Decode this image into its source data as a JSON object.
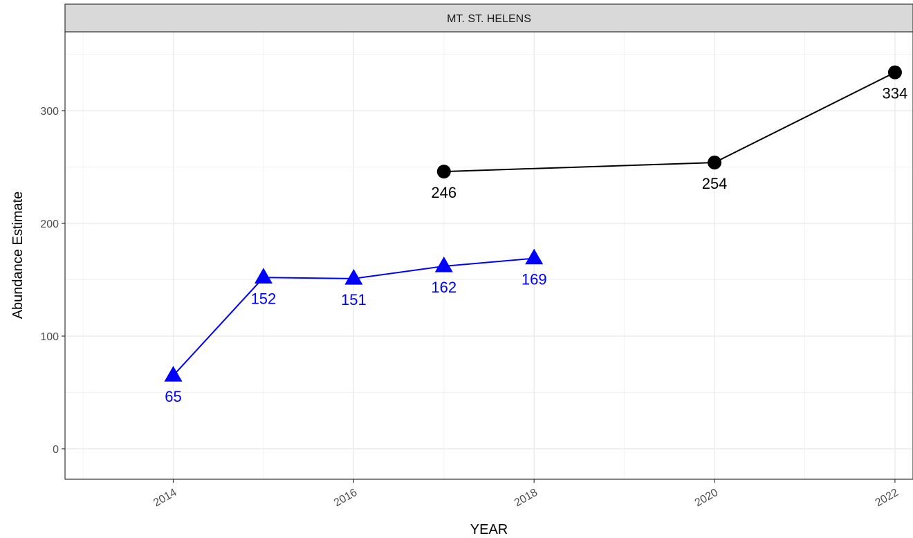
{
  "chart_data": {
    "type": "line",
    "title": "",
    "facet_label": "MT. ST. HELENS",
    "xlabel": "YEAR",
    "ylabel": "Abundance Estimate",
    "xlim": [
      2012.8,
      2022.2
    ],
    "ylim": [
      -27,
      370
    ],
    "x_ticks": [
      2014,
      2016,
      2018,
      2020,
      2022
    ],
    "x_tick_labels": [
      "2014",
      "2016",
      "2018",
      "2020",
      "2022"
    ],
    "y_ticks": [
      0,
      100,
      200,
      300
    ],
    "y_tick_labels": [
      "0",
      "100",
      "200",
      "300"
    ],
    "grid": true,
    "legend": "none",
    "series": [
      {
        "marker": "triangle",
        "color": "#0000ff",
        "x": [
          2014,
          2015,
          2016,
          2017,
          2018
        ],
        "values": [
          65,
          152,
          151,
          162,
          169
        ],
        "labels": [
          "65",
          "152",
          "151",
          "162",
          "169"
        ]
      },
      {
        "marker": "circle",
        "color": "#000000",
        "x": [
          2017,
          2020,
          2022
        ],
        "values": [
          246,
          254,
          334
        ],
        "labels": [
          "246",
          "254",
          "334"
        ]
      }
    ]
  }
}
